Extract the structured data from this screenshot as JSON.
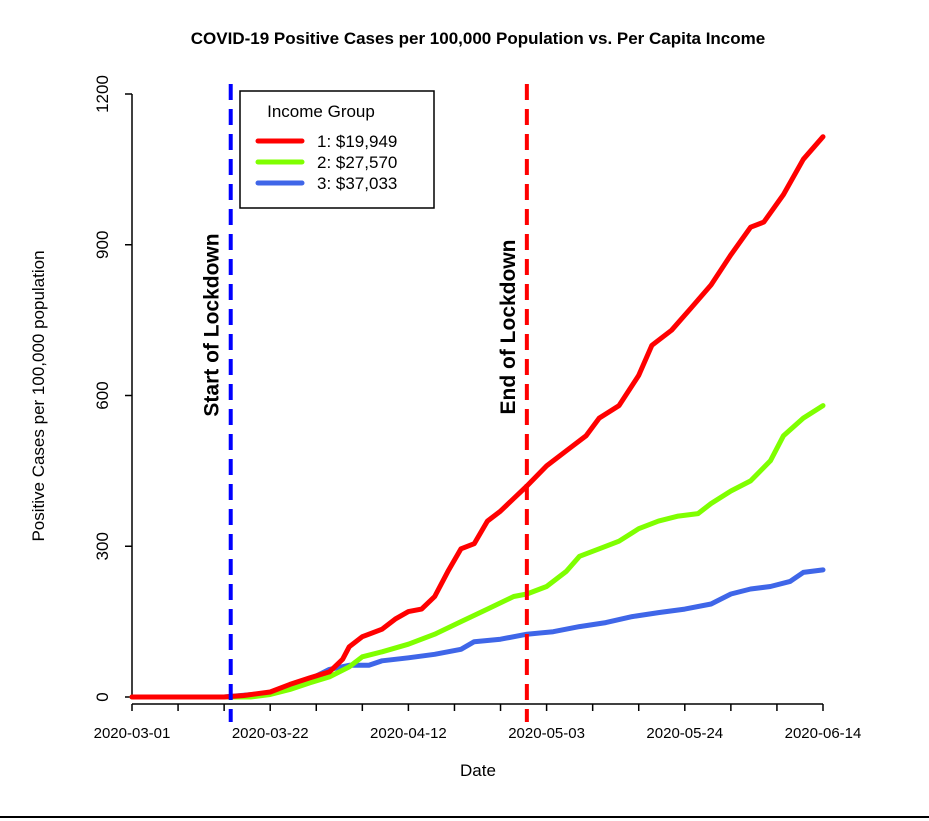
{
  "chart_data": {
    "type": "line",
    "title": "COVID-19 Positive Cases per 100,000 Population vs. Per Capita Income",
    "xlabel": "Date",
    "ylabel": "Positive Cases per 100,000 population",
    "xlim": [
      "2020-03-01",
      "2020-06-14"
    ],
    "ylim": [
      0,
      1200
    ],
    "x_ticks": [
      "2020-03-01",
      "2020-03-22",
      "2020-04-12",
      "2020-05-03",
      "2020-05-24",
      "2020-06-14"
    ],
    "y_ticks": [
      0,
      300,
      600,
      900,
      1200
    ],
    "grid": false,
    "legend": {
      "title": "Income Group",
      "placement": "top-left"
    },
    "annotations": [
      {
        "label": "Start of Lockdown",
        "date": "2020-03-16",
        "color": "#0000ff",
        "style": "dashed"
      },
      {
        "label": "End of Lockdown",
        "date": "2020-04-30",
        "color": "#ff0000",
        "style": "dashed"
      }
    ],
    "series": [
      {
        "name": "1: $19,949",
        "color": "#ff0000",
        "points": [
          [
            "2020-03-01",
            0
          ],
          [
            "2020-03-15",
            0
          ],
          [
            "2020-03-18",
            3
          ],
          [
            "2020-03-22",
            10
          ],
          [
            "2020-03-25",
            25
          ],
          [
            "2020-03-28",
            38
          ],
          [
            "2020-03-31",
            50
          ],
          [
            "2020-04-02",
            75
          ],
          [
            "2020-04-03",
            100
          ],
          [
            "2020-04-05",
            120
          ],
          [
            "2020-04-08",
            135
          ],
          [
            "2020-04-10",
            155
          ],
          [
            "2020-04-12",
            170
          ],
          [
            "2020-04-14",
            175
          ],
          [
            "2020-04-16",
            200
          ],
          [
            "2020-04-18",
            250
          ],
          [
            "2020-04-20",
            295
          ],
          [
            "2020-04-22",
            305
          ],
          [
            "2020-04-24",
            350
          ],
          [
            "2020-04-26",
            370
          ],
          [
            "2020-04-28",
            395
          ],
          [
            "2020-04-30",
            420
          ],
          [
            "2020-05-03",
            460
          ],
          [
            "2020-05-06",
            490
          ],
          [
            "2020-05-09",
            520
          ],
          [
            "2020-05-11",
            555
          ],
          [
            "2020-05-14",
            580
          ],
          [
            "2020-05-17",
            640
          ],
          [
            "2020-05-19",
            700
          ],
          [
            "2020-05-22",
            730
          ],
          [
            "2020-05-25",
            775
          ],
          [
            "2020-05-28",
            820
          ],
          [
            "2020-05-31",
            880
          ],
          [
            "2020-06-03",
            935
          ],
          [
            "2020-06-05",
            945
          ],
          [
            "2020-06-08",
            1000
          ],
          [
            "2020-06-11",
            1070
          ],
          [
            "2020-06-14",
            1115
          ]
        ]
      },
      {
        "name": "2: $27,570",
        "color": "#7fff00",
        "points": [
          [
            "2020-03-01",
            0
          ],
          [
            "2020-03-19",
            0
          ],
          [
            "2020-03-22",
            5
          ],
          [
            "2020-03-25",
            15
          ],
          [
            "2020-03-28",
            28
          ],
          [
            "2020-03-31",
            40
          ],
          [
            "2020-04-03",
            60
          ],
          [
            "2020-04-05",
            80
          ],
          [
            "2020-04-08",
            90
          ],
          [
            "2020-04-12",
            105
          ],
          [
            "2020-04-16",
            125
          ],
          [
            "2020-04-20",
            150
          ],
          [
            "2020-04-24",
            175
          ],
          [
            "2020-04-28",
            200
          ],
          [
            "2020-04-30",
            205
          ],
          [
            "2020-05-03",
            220
          ],
          [
            "2020-05-06",
            250
          ],
          [
            "2020-05-08",
            280
          ],
          [
            "2020-05-11",
            295
          ],
          [
            "2020-05-14",
            310
          ],
          [
            "2020-05-17",
            335
          ],
          [
            "2020-05-20",
            350
          ],
          [
            "2020-05-23",
            360
          ],
          [
            "2020-05-26",
            365
          ],
          [
            "2020-05-28",
            385
          ],
          [
            "2020-05-31",
            410
          ],
          [
            "2020-06-03",
            430
          ],
          [
            "2020-06-06",
            470
          ],
          [
            "2020-06-08",
            520
          ],
          [
            "2020-06-11",
            555
          ],
          [
            "2020-06-14",
            580
          ]
        ]
      },
      {
        "name": "3: $37,033",
        "color": "#3f66e8",
        "points": [
          [
            "2020-03-01",
            0
          ],
          [
            "2020-03-15",
            0
          ],
          [
            "2020-03-22",
            8
          ],
          [
            "2020-03-25",
            20
          ],
          [
            "2020-03-28",
            35
          ],
          [
            "2020-03-31",
            55
          ],
          [
            "2020-04-03",
            63
          ],
          [
            "2020-04-06",
            63
          ],
          [
            "2020-04-08",
            72
          ],
          [
            "2020-04-12",
            78
          ],
          [
            "2020-04-16",
            85
          ],
          [
            "2020-04-20",
            95
          ],
          [
            "2020-04-22",
            110
          ],
          [
            "2020-04-26",
            115
          ],
          [
            "2020-04-30",
            125
          ],
          [
            "2020-05-04",
            130
          ],
          [
            "2020-05-08",
            140
          ],
          [
            "2020-05-12",
            148
          ],
          [
            "2020-05-16",
            160
          ],
          [
            "2020-05-20",
            168
          ],
          [
            "2020-05-24",
            175
          ],
          [
            "2020-05-28",
            185
          ],
          [
            "2020-05-31",
            205
          ],
          [
            "2020-06-03",
            215
          ],
          [
            "2020-06-06",
            220
          ],
          [
            "2020-06-09",
            230
          ],
          [
            "2020-06-11",
            248
          ],
          [
            "2020-06-14",
            253
          ]
        ]
      }
    ]
  }
}
